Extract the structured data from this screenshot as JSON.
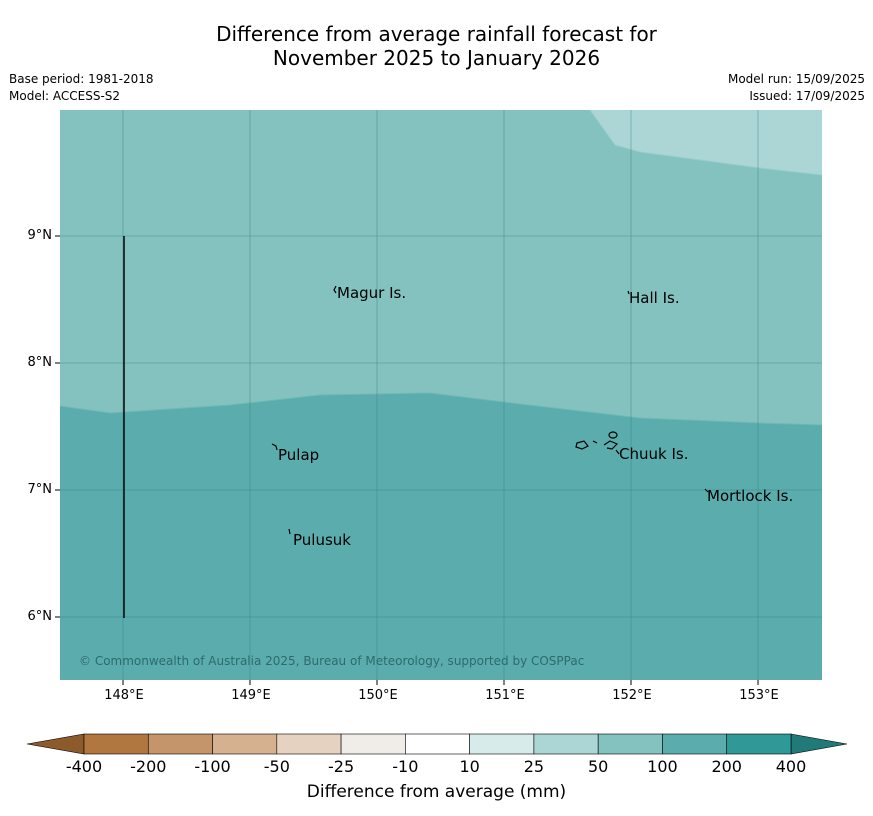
{
  "title_line1": "Difference from average rainfall forecast for",
  "title_line2": "November 2025 to January 2026",
  "base_period": "Base period: 1981-2018",
  "model": "Model: ACCESS-S2",
  "model_run": "Model run: 15/09/2025",
  "issued": "Issued: 17/09/2025",
  "copyright": "© Commonwealth of Australia 2025, Bureau of Meteorology, supported by COSPPac",
  "lat_ticks": [
    "9°N",
    "8°N",
    "7°N",
    "6°N"
  ],
  "lon_ticks": [
    "148°E",
    "149°E",
    "150°E",
    "151°E",
    "152°E",
    "153°E"
  ],
  "places": {
    "magur": "Magur Is.",
    "hall": "Hall Is.",
    "pulap": "Pulap",
    "chuuk": "Chuuk Is.",
    "mortlock": "Mortlock Is.",
    "pulusuk": "Pulusuk"
  },
  "colorbar": {
    "labels": [
      "-400",
      "-200",
      "-100",
      "-50",
      "-25",
      "-10",
      "10",
      "25",
      "50",
      "100",
      "200",
      "400"
    ],
    "colors": [
      "#b07840",
      "#c4956b",
      "#d5b18f",
      "#e6d2c0",
      "#f0ede9",
      "#ffffff",
      "#d6ebea",
      "#acd6d5",
      "#84c2c0",
      "#5bacad",
      "#2f9997"
    ],
    "low_extend_color": "#8c5a2b",
    "high_extend_color": "#1f7a78",
    "title": "Difference from average (mm)"
  },
  "zone_colors": {
    "band_25_50": "#acd6d5",
    "band_50_100": "#84c2c0",
    "band_100_200": "#5bacad"
  }
}
